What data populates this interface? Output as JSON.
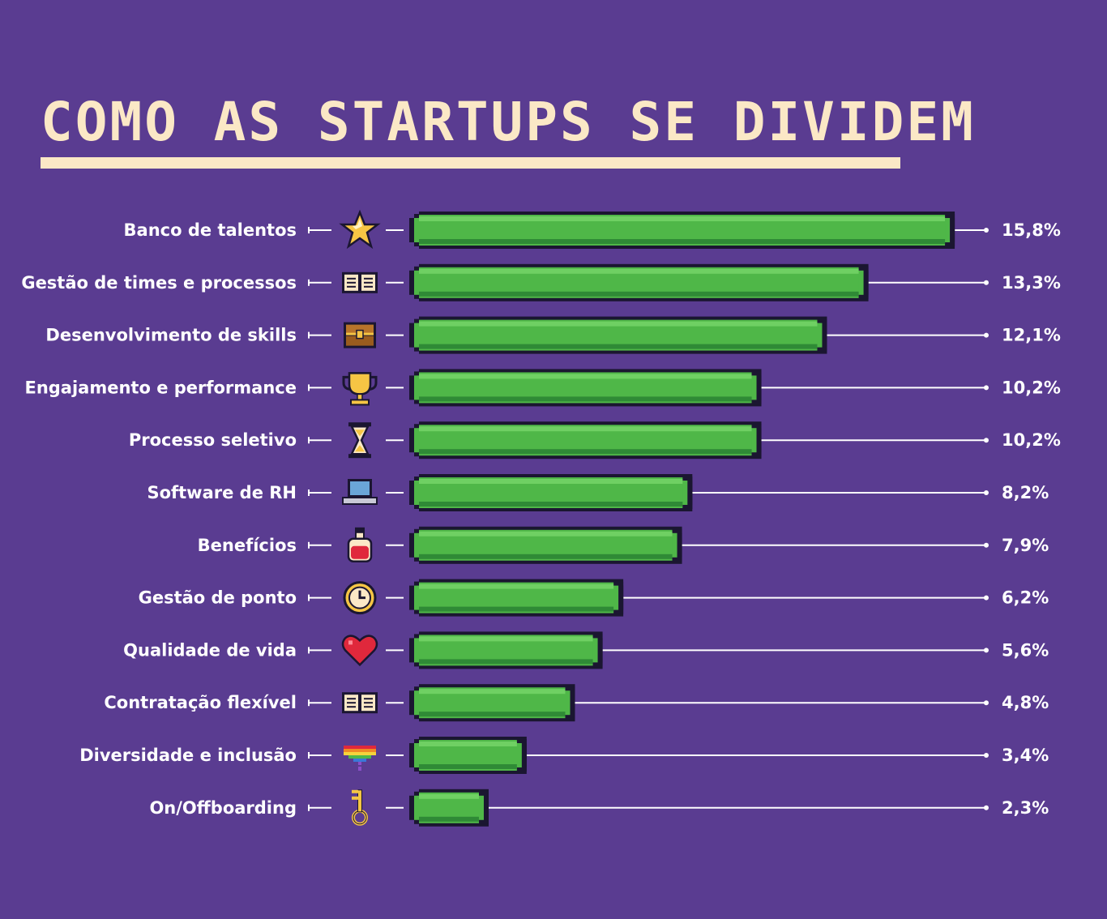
{
  "title": "COMO AS STARTUPS SE DIVIDEM",
  "colors": {
    "background": "#5a3c91",
    "title": "#fbe8c6",
    "bar_fill": "#4fb748",
    "bar_highlight": "#6fd063",
    "bar_shadow": "#2f8a36",
    "bar_outline": "#1b1631",
    "text": "#ffffff"
  },
  "chart_data": {
    "type": "bar",
    "orientation": "horizontal",
    "title": "COMO AS STARTUPS SE DIVIDEM",
    "categories": [
      "Banco de talentos",
      "Gestão de times e processos",
      "Desenvolvimento de skills",
      "Engajamento e performance",
      "Processo seletivo",
      "Software de RH",
      "Benefícios",
      "Gestão de ponto",
      "Qualidade de vida",
      "Contratação flexível",
      "Diversidade e inclusão",
      "On/Offboarding"
    ],
    "values": [
      15.8,
      13.3,
      12.1,
      10.2,
      10.2,
      8.2,
      7.9,
      6.2,
      5.6,
      4.8,
      3.4,
      2.3
    ],
    "value_labels": [
      "15,8%",
      "13,3%",
      "12,1%",
      "10,2%",
      "10,2%",
      "8,2%",
      "7,9%",
      "6,2%",
      "5,6%",
      "4,8%",
      "3,4%",
      "2,3%"
    ],
    "icons": [
      "star-icon",
      "open-book-icon",
      "treasure-chest-icon",
      "trophy-icon",
      "hourglass-icon",
      "laptop-icon",
      "potion-icon",
      "clock-icon",
      "heart-icon",
      "open-book-icon",
      "rainbow-heart-icon",
      "key-icon"
    ],
    "xlabel": "",
    "ylabel": "",
    "xlim": [
      0,
      16
    ],
    "grid": false,
    "legend": "none"
  }
}
